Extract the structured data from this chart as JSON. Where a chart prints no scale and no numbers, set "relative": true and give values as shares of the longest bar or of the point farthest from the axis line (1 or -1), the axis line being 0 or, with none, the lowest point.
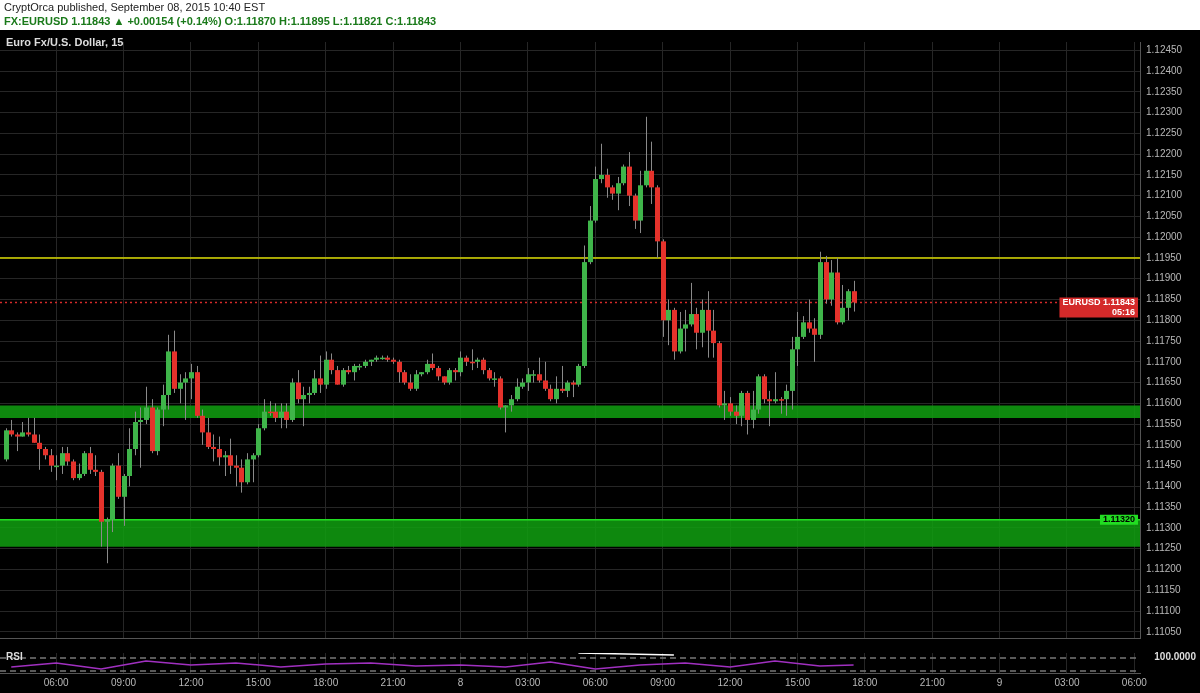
{
  "chart_data": [
    {
      "type": "candlestick",
      "title": "CryptOrca published, September 08, 2015 10:40 EST",
      "subtitle": "FX:EURUSD 1.11843 ▲ +0.00154 (+0.14%) O:1.11870 H:1.11895 L:1.11821 C:1.11843",
      "annotations": [
        "Euro Fx/U.S. Dollar, 15"
      ],
      "x": [
        "2015-09-07T03:45",
        "2015-09-07T04:00",
        "2015-09-07T04:15",
        "2015-09-07T04:30",
        "2015-09-07T04:45",
        "2015-09-07T05:00",
        "2015-09-07T05:15",
        "2015-09-07T05:30",
        "2015-09-07T05:45",
        "2015-09-07T06:00",
        "2015-09-07T06:15",
        "2015-09-07T06:30",
        "2015-09-07T06:45",
        "2015-09-07T07:00",
        "2015-09-07T07:15",
        "2015-09-07T07:30",
        "2015-09-07T07:45",
        "2015-09-07T08:00",
        "2015-09-07T08:15",
        "2015-09-07T08:30",
        "2015-09-07T08:45",
        "2015-09-07T09:00",
        "2015-09-07T09:15",
        "2015-09-07T09:30",
        "2015-09-07T09:45",
        "2015-09-07T10:00",
        "2015-09-07T10:15",
        "2015-09-07T10:30",
        "2015-09-07T10:45",
        "2015-09-07T11:00",
        "2015-09-07T11:15",
        "2015-09-07T11:30",
        "2015-09-07T11:45",
        "2015-09-07T12:00",
        "2015-09-07T12:15",
        "2015-09-07T12:30",
        "2015-09-07T12:45",
        "2015-09-07T13:00",
        "2015-09-07T13:15",
        "2015-09-07T13:30",
        "2015-09-07T13:45",
        "2015-09-07T14:00",
        "2015-09-07T14:15",
        "2015-09-07T14:30",
        "2015-09-07T14:45",
        "2015-09-07T15:00",
        "2015-09-07T15:15",
        "2015-09-07T15:30",
        "2015-09-07T15:45",
        "2015-09-07T16:00",
        "2015-09-07T16:15",
        "2015-09-07T16:30",
        "2015-09-07T16:45",
        "2015-09-07T17:00",
        "2015-09-07T17:15",
        "2015-09-07T17:30",
        "2015-09-07T17:45",
        "2015-09-07T18:00",
        "2015-09-07T18:15",
        "2015-09-07T18:30",
        "2015-09-07T18:45",
        "2015-09-07T19:00",
        "2015-09-07T19:15",
        "2015-09-07T19:30",
        "2015-09-07T19:45",
        "2015-09-07T20:00",
        "2015-09-07T20:15",
        "2015-09-07T20:30",
        "2015-09-07T20:45",
        "2015-09-07T21:00",
        "2015-09-07T21:15",
        "2015-09-07T21:30",
        "2015-09-07T21:45",
        "2015-09-07T22:00",
        "2015-09-07T22:15",
        "2015-09-07T22:30",
        "2015-09-07T22:45",
        "2015-09-07T23:00",
        "2015-09-07T23:15",
        "2015-09-07T23:30",
        "2015-09-07T23:45",
        "2015-09-08T00:00",
        "2015-09-08T00:15",
        "2015-09-08T00:30",
        "2015-09-08T00:45",
        "2015-09-08T01:00",
        "2015-09-08T01:15",
        "2015-09-08T01:30",
        "2015-09-08T01:45",
        "2015-09-08T02:00",
        "2015-09-08T02:15",
        "2015-09-08T02:30",
        "2015-09-08T02:45",
        "2015-09-08T03:00",
        "2015-09-08T03:15",
        "2015-09-08T03:30",
        "2015-09-08T03:45",
        "2015-09-08T04:00",
        "2015-09-08T04:15",
        "2015-09-08T04:30",
        "2015-09-08T04:45",
        "2015-09-08T05:00",
        "2015-09-08T05:15",
        "2015-09-08T05:30",
        "2015-09-08T05:45",
        "2015-09-08T06:00",
        "2015-09-08T06:15",
        "2015-09-08T06:30",
        "2015-09-08T06:45",
        "2015-09-08T07:00",
        "2015-09-08T07:15",
        "2015-09-08T07:30",
        "2015-09-08T07:45",
        "2015-09-08T08:00",
        "2015-09-08T08:15",
        "2015-09-08T08:30",
        "2015-09-08T08:45",
        "2015-09-08T09:00",
        "2015-09-08T09:15",
        "2015-09-08T09:30",
        "2015-09-08T09:45",
        "2015-09-08T10:00",
        "2015-09-08T10:15",
        "2015-09-08T10:30",
        "2015-09-08T10:45",
        "2015-09-08T11:00",
        "2015-09-08T11:15",
        "2015-09-08T11:30",
        "2015-09-08T11:45",
        "2015-09-08T12:00",
        "2015-09-08T12:15",
        "2015-09-08T12:30",
        "2015-09-08T12:45",
        "2015-09-08T13:00",
        "2015-09-08T13:15",
        "2015-09-08T13:30",
        "2015-09-08T13:45",
        "2015-09-08T14:00",
        "2015-09-08T14:15",
        "2015-09-08T14:30",
        "2015-09-08T14:45",
        "2015-09-08T15:00",
        "2015-09-08T15:15",
        "2015-09-08T15:30",
        "2015-09-08T15:45",
        "2015-09-08T16:00",
        "2015-09-08T16:15",
        "2015-09-08T16:30",
        "2015-09-08T16:45",
        "2015-09-08T17:00",
        "2015-09-08T17:15",
        "2015-09-08T17:30"
      ],
      "ohlc": [
        [
          1.11465,
          1.1154,
          1.1146,
          1.11535
        ],
        [
          1.11535,
          1.1156,
          1.1152,
          1.11525
        ],
        [
          1.11525,
          1.1153,
          1.11485,
          1.1152
        ],
        [
          1.1152,
          1.11555,
          1.1152,
          1.1153
        ],
        [
          1.1153,
          1.11565,
          1.1152,
          1.11525
        ],
        [
          1.11525,
          1.11565,
          1.11505,
          1.11505
        ],
        [
          1.11505,
          1.11525,
          1.1144,
          1.1149
        ],
        [
          1.1149,
          1.11495,
          1.11465,
          1.11475
        ],
        [
          1.11475,
          1.1149,
          1.11435,
          1.1145
        ],
        [
          1.1145,
          1.11475,
          1.11415,
          1.1145
        ],
        [
          1.1145,
          1.11495,
          1.1143,
          1.1148
        ],
        [
          1.1148,
          1.11495,
          1.1145,
          1.1146
        ],
        [
          1.1146,
          1.11465,
          1.11415,
          1.1142
        ],
        [
          1.1142,
          1.11455,
          1.11415,
          1.1143
        ],
        [
          1.1143,
          1.11485,
          1.11425,
          1.1148
        ],
        [
          1.1148,
          1.11495,
          1.1143,
          1.1144
        ],
        [
          1.1144,
          1.11475,
          1.11425,
          1.11435
        ],
        [
          1.11435,
          1.1144,
          1.11255,
          1.11315
        ],
        [
          1.11315,
          1.11325,
          1.11215,
          1.1132
        ],
        [
          1.1132,
          1.11455,
          1.1129,
          1.1145
        ],
        [
          1.1145,
          1.1148,
          1.1137,
          1.11375
        ],
        [
          1.11375,
          1.1143,
          1.11305,
          1.11425
        ],
        [
          1.11425,
          1.1154,
          1.114,
          1.1149
        ],
        [
          1.1149,
          1.1158,
          1.11475,
          1.11555
        ],
        [
          1.11555,
          1.1159,
          1.11445,
          1.1156
        ],
        [
          1.1156,
          1.1164,
          1.1155,
          1.1159
        ],
        [
          1.1159,
          1.1161,
          1.1148,
          1.11485
        ],
        [
          1.11485,
          1.1159,
          1.11475,
          1.11585
        ],
        [
          1.11585,
          1.11645,
          1.11545,
          1.1162
        ],
        [
          1.1162,
          1.11765,
          1.11585,
          1.11725
        ],
        [
          1.11725,
          1.11775,
          1.11625,
          1.11635
        ],
        [
          1.11635,
          1.1167,
          1.116,
          1.1165
        ],
        [
          1.1165,
          1.11675,
          1.1156,
          1.1166
        ],
        [
          1.1166,
          1.11695,
          1.1161,
          1.11675
        ],
        [
          1.11675,
          1.1169,
          1.11565,
          1.1157
        ],
        [
          1.1157,
          1.11585,
          1.115,
          1.1153
        ],
        [
          1.1153,
          1.11565,
          1.1149,
          1.11495
        ],
        [
          1.11495,
          1.11525,
          1.1146,
          1.1149
        ],
        [
          1.1149,
          1.1152,
          1.1145,
          1.1147
        ],
        [
          1.1147,
          1.11485,
          1.11425,
          1.11475
        ],
        [
          1.11475,
          1.11515,
          1.1143,
          1.1145
        ],
        [
          1.1145,
          1.11475,
          1.114,
          1.11445
        ],
        [
          1.11445,
          1.11465,
          1.11385,
          1.1141
        ],
        [
          1.1141,
          1.1148,
          1.11405,
          1.11465
        ],
        [
          1.11465,
          1.1148,
          1.1141,
          1.11475
        ],
        [
          1.11475,
          1.1155,
          1.1147,
          1.1154
        ],
        [
          1.1154,
          1.1161,
          1.11535,
          1.1158
        ],
        [
          1.1158,
          1.11605,
          1.1157,
          1.1158
        ],
        [
          1.1158,
          1.116,
          1.11555,
          1.11565
        ],
        [
          1.11565,
          1.116,
          1.1154,
          1.1158
        ],
        [
          1.1158,
          1.116,
          1.1154,
          1.1156
        ],
        [
          1.1156,
          1.1166,
          1.11555,
          1.1165
        ],
        [
          1.1165,
          1.1168,
          1.116,
          1.1161
        ],
        [
          1.1161,
          1.1164,
          1.11545,
          1.1162
        ],
        [
          1.1162,
          1.1164,
          1.116,
          1.11625
        ],
        [
          1.11625,
          1.1168,
          1.1162,
          1.1166
        ],
        [
          1.1166,
          1.11715,
          1.11625,
          1.11645
        ],
        [
          1.11645,
          1.11725,
          1.11635,
          1.11705
        ],
        [
          1.11705,
          1.1172,
          1.1167,
          1.1168
        ],
        [
          1.1168,
          1.1169,
          1.11645,
          1.11645
        ],
        [
          1.11645,
          1.11685,
          1.1164,
          1.1168
        ],
        [
          1.1168,
          1.1169,
          1.1167,
          1.11675
        ],
        [
          1.11675,
          1.11695,
          1.11655,
          1.1169
        ],
        [
          1.1169,
          1.11695,
          1.1168,
          1.1169
        ],
        [
          1.1169,
          1.11705,
          1.11685,
          1.117
        ],
        [
          1.117,
          1.11705,
          1.1169,
          1.11705
        ],
        [
          1.11705,
          1.11715,
          1.117,
          1.1171
        ],
        [
          1.1171,
          1.11715,
          1.11705,
          1.1171
        ],
        [
          1.1171,
          1.11715,
          1.117,
          1.11705
        ],
        [
          1.11705,
          1.1171,
          1.11695,
          1.117
        ],
        [
          1.117,
          1.11705,
          1.1165,
          1.11675
        ],
        [
          1.11675,
          1.1168,
          1.11645,
          1.1165
        ],
        [
          1.1165,
          1.1167,
          1.1163,
          1.11635
        ],
        [
          1.11635,
          1.1168,
          1.1163,
          1.1167
        ],
        [
          1.1167,
          1.11675,
          1.11665,
          1.11675
        ],
        [
          1.11675,
          1.11705,
          1.1167,
          1.11695
        ],
        [
          1.11695,
          1.1172,
          1.1168,
          1.11685
        ],
        [
          1.11685,
          1.1169,
          1.11655,
          1.11665
        ],
        [
          1.11665,
          1.11665,
          1.11645,
          1.1165
        ],
        [
          1.1165,
          1.11685,
          1.11645,
          1.1168
        ],
        [
          1.1168,
          1.11685,
          1.11655,
          1.11675
        ],
        [
          1.11675,
          1.11725,
          1.11665,
          1.1171
        ],
        [
          1.1171,
          1.11715,
          1.1169,
          1.117
        ],
        [
          1.117,
          1.1173,
          1.1168,
          1.117
        ],
        [
          1.117,
          1.1171,
          1.11685,
          1.11705
        ],
        [
          1.11705,
          1.1171,
          1.1167,
          1.1168
        ],
        [
          1.1168,
          1.11685,
          1.11655,
          1.1166
        ],
        [
          1.1166,
          1.11675,
          1.1164,
          1.1166
        ],
        [
          1.1166,
          1.11665,
          1.11585,
          1.1159
        ],
        [
          1.1159,
          1.11595,
          1.1153,
          1.11595
        ],
        [
          1.11595,
          1.1162,
          1.1158,
          1.1161
        ],
        [
          1.1161,
          1.1166,
          1.11605,
          1.1164
        ],
        [
          1.1164,
          1.1166,
          1.11635,
          1.1165
        ],
        [
          1.1165,
          1.11685,
          1.1163,
          1.1167
        ],
        [
          1.1167,
          1.1168,
          1.1165,
          1.1167
        ],
        [
          1.1167,
          1.1171,
          1.1165,
          1.11655
        ],
        [
          1.11655,
          1.117,
          1.1163,
          1.11635
        ],
        [
          1.11635,
          1.11645,
          1.11605,
          1.1161
        ],
        [
          1.1161,
          1.11665,
          1.116,
          1.11635
        ],
        [
          1.11635,
          1.1169,
          1.11625,
          1.1163
        ],
        [
          1.1163,
          1.11655,
          1.11615,
          1.1165
        ],
        [
          1.1165,
          1.11655,
          1.11615,
          1.11645
        ],
        [
          1.11645,
          1.11695,
          1.1164,
          1.1169
        ],
        [
          1.1169,
          1.1198,
          1.11685,
          1.1194
        ],
        [
          1.1194,
          1.12075,
          1.11935,
          1.1204
        ],
        [
          1.1204,
          1.1217,
          1.12035,
          1.1214
        ],
        [
          1.1214,
          1.12225,
          1.1213,
          1.1215
        ],
        [
          1.1215,
          1.12165,
          1.12095,
          1.1212
        ],
        [
          1.1212,
          1.12125,
          1.1209,
          1.12105
        ],
        [
          1.12105,
          1.12145,
          1.12065,
          1.1213
        ],
        [
          1.1213,
          1.12175,
          1.12125,
          1.1217
        ],
        [
          1.1217,
          1.12205,
          1.12075,
          1.121
        ],
        [
          1.121,
          1.12105,
          1.1202,
          1.1204
        ],
        [
          1.1204,
          1.1216,
          1.1201,
          1.12125
        ],
        [
          1.12125,
          1.1229,
          1.1212,
          1.1216
        ],
        [
          1.1216,
          1.1223,
          1.1208,
          1.1212
        ],
        [
          1.1212,
          1.12125,
          1.1195,
          1.1199
        ],
        [
          1.1199,
          1.11995,
          1.1176,
          1.118
        ],
        [
          1.118,
          1.1185,
          1.1174,
          1.11825
        ],
        [
          1.11825,
          1.1183,
          1.11705,
          1.11725
        ],
        [
          1.11725,
          1.1182,
          1.1172,
          1.1178
        ],
        [
          1.1178,
          1.11825,
          1.11725,
          1.1179
        ],
        [
          1.1179,
          1.1189,
          1.11785,
          1.11815
        ],
        [
          1.11815,
          1.1183,
          1.1173,
          1.1177
        ],
        [
          1.1177,
          1.1185,
          1.11735,
          1.11825
        ],
        [
          1.11825,
          1.1187,
          1.1171,
          1.11775
        ],
        [
          1.11775,
          1.11825,
          1.1171,
          1.11745
        ],
        [
          1.11745,
          1.1175,
          1.1159,
          1.11595
        ],
        [
          1.11595,
          1.1163,
          1.1156,
          1.116
        ],
        [
          1.116,
          1.11615,
          1.1157,
          1.1158
        ],
        [
          1.1158,
          1.11595,
          1.1155,
          1.1157
        ],
        [
          1.1157,
          1.1163,
          1.11545,
          1.11625
        ],
        [
          1.11625,
          1.1163,
          1.11525,
          1.1156
        ],
        [
          1.1156,
          1.1163,
          1.1154,
          1.11585
        ],
        [
          1.11585,
          1.1167,
          1.11575,
          1.11665
        ],
        [
          1.11665,
          1.1167,
          1.116,
          1.1161
        ],
        [
          1.1161,
          1.1163,
          1.11545,
          1.11605
        ],
        [
          1.11605,
          1.11675,
          1.116,
          1.1161
        ],
        [
          1.1161,
          1.11615,
          1.11575,
          1.1161
        ],
        [
          1.1161,
          1.11645,
          1.1157,
          1.1163
        ],
        [
          1.1163,
          1.1176,
          1.11585,
          1.1173
        ],
        [
          1.1173,
          1.1182,
          1.1169,
          1.1176
        ],
        [
          1.1176,
          1.1181,
          1.11755,
          1.11795
        ],
        [
          1.11795,
          1.1185,
          1.1177,
          1.1178
        ],
        [
          1.1178,
          1.11805,
          1.117,
          1.11765
        ],
        [
          1.11765,
          1.11965,
          1.11755,
          1.1194
        ],
        [
          1.1194,
          1.11955,
          1.1184,
          1.1185
        ],
        [
          1.1185,
          1.11945,
          1.11835,
          1.11915
        ],
        [
          1.11915,
          1.1195,
          1.1179,
          1.11795
        ],
        [
          1.11795,
          1.11885,
          1.1179,
          1.1183
        ],
        [
          1.1183,
          1.11875,
          1.118,
          1.1187
        ],
        [
          1.1187,
          1.11895,
          1.11821,
          1.11843
        ]
      ],
      "colors": [
        "#3fb54a",
        "#e5322b",
        "#e5322b",
        "#3fb54a",
        "#e5322b",
        "#e5322b",
        "#e5322b",
        "#e5322b",
        "#e5322b",
        "#3fb54a",
        "#3fb54a",
        "#e5322b",
        "#e5322b",
        "#3fb54a",
        "#3fb54a",
        "#e5322b",
        "#e5322b",
        "#e5322b",
        "#3fb54a",
        "#3fb54a",
        "#e5322b",
        "#3fb54a",
        "#3fb54a",
        "#3fb54a",
        "#3fb54a",
        "#3fb54a",
        "#e5322b",
        "#3fb54a",
        "#3fb54a",
        "#3fb54a",
        "#e5322b",
        "#3fb54a",
        "#3fb54a",
        "#3fb54a",
        "#e5322b",
        "#e5322b",
        "#e5322b",
        "#e5322b",
        "#e5322b",
        "#3fb54a",
        "#e5322b",
        "#e5322b",
        "#e5322b",
        "#3fb54a",
        "#3fb54a",
        "#3fb54a",
        "#3fb54a",
        "#e5322b",
        "#e5322b",
        "#3fb54a",
        "#e5322b",
        "#3fb54a",
        "#e5322b",
        "#3fb54a",
        "#3fb54a",
        "#3fb54a",
        "#e5322b",
        "#3fb54a",
        "#e5322b",
        "#e5322b",
        "#3fb54a",
        "#e5322b",
        "#3fb54a",
        "#3fb54a",
        "#3fb54a",
        "#3fb54a",
        "#3fb54a",
        "#3fb54a",
        "#e5322b",
        "#e5322b",
        "#e5322b",
        "#e5322b",
        "#e5322b",
        "#3fb54a",
        "#3fb54a",
        "#3fb54a",
        "#e5322b",
        "#e5322b",
        "#e5322b",
        "#3fb54a",
        "#e5322b",
        "#3fb54a",
        "#e5322b",
        "#e5322b",
        "#3fb54a",
        "#e5322b",
        "#e5322b",
        "#3fb54a",
        "#e5322b",
        "#3fb54a",
        "#3fb54a",
        "#3fb54a",
        "#3fb54a",
        "#3fb54a",
        "#3fb54a",
        "#e5322b",
        "#e5322b",
        "#e5322b",
        "#3fb54a",
        "#e5322b",
        "#3fb54a",
        "#e5322b",
        "#3fb54a",
        "#3fb54a",
        "#3fb54a",
        "#3fb54a",
        "#3fb54a",
        "#e5322b",
        "#e5322b",
        "#3fb54a",
        "#3fb54a",
        "#e5322b",
        "#e5322b",
        "#3fb54a",
        "#3fb54a",
        "#e5322b",
        "#e5322b",
        "#e5322b",
        "#3fb54a",
        "#e5322b",
        "#3fb54a",
        "#3fb54a",
        "#3fb54a",
        "#e5322b",
        "#3fb54a",
        "#e5322b",
        "#e5322b",
        "#e5322b",
        "#3fb54a",
        "#e5322b",
        "#e5322b",
        "#3fb54a",
        "#e5322b",
        "#3fb54a",
        "#3fb54a",
        "#e5322b",
        "#e5322b",
        "#3fb54a",
        "#e5322b",
        "#3fb54a",
        "#3fb54a",
        "#3fb54a",
        "#3fb54a",
        "#e5322b",
        "#e5322b",
        "#3fb54a",
        "#e5322b",
        "#3fb54a",
        "#e5322b",
        "#3fb54a",
        "#3fb54a",
        "#e5322b"
      ],
      "xlim": [
        "2015-09-07T03:30",
        "2015-09-09T06:15"
      ],
      "xticks": [
        {
          "value": "2015-09-07T06:00",
          "label": null
        },
        {
          "value": "2015-09-07T09:00",
          "label": null
        },
        {
          "value": "2015-09-07T12:00",
          "label": null
        },
        {
          "value": "2015-09-07T15:00",
          "label": null
        },
        {
          "value": "2015-09-07T18:00",
          "label": null
        },
        {
          "value": "2015-09-07T21:00",
          "label": null
        },
        {
          "value": "2015-09-08T00:00",
          "label": null
        },
        {
          "value": "2015-09-08T03:00",
          "label": null
        },
        {
          "value": "2015-09-08T06:00",
          "label": null
        },
        {
          "value": "2015-09-08T09:00",
          "label": null
        },
        {
          "value": "2015-09-08T12:00",
          "label": null
        },
        {
          "value": "2015-09-08T15:00",
          "label": null
        },
        {
          "value": "2015-09-08T18:00",
          "label": null
        },
        {
          "value": "2015-09-08T21:00",
          "label": null
        },
        {
          "value": "2015-09-09T00:00",
          "label": null
        },
        {
          "value": "2015-09-09T03:00",
          "label": null
        },
        {
          "value": "2015-09-09T06:00",
          "label": null
        }
      ],
      "ylim": [
        1.11035,
        1.1247
      ],
      "yticks": [
        {
          "value": 1.1105,
          "label": "1.11050"
        },
        {
          "value": 1.111,
          "label": "1.11100"
        },
        {
          "value": 1.1115,
          "label": "1.11150"
        },
        {
          "value": 1.112,
          "label": "1.11200"
        },
        {
          "value": 1.1125,
          "label": "1.11250"
        },
        {
          "value": 1.113,
          "label": "1.11300"
        },
        {
          "value": 1.1135,
          "label": "1.11350"
        },
        {
          "value": 1.114,
          "label": "1.11400"
        },
        {
          "value": 1.1145,
          "label": "1.11450"
        },
        {
          "value": 1.115,
          "label": "1.11500"
        },
        {
          "value": 1.1155,
          "label": "1.11550"
        },
        {
          "value": 1.116,
          "label": "1.11600"
        },
        {
          "value": 1.1165,
          "label": "1.11650"
        },
        {
          "value": 1.117,
          "label": "1.11700"
        },
        {
          "value": 1.1175,
          "label": "1.11750"
        },
        {
          "value": 1.118,
          "label": "1.11800"
        },
        {
          "value": 1.1185,
          "label": "1.11850"
        },
        {
          "value": 1.119,
          "label": "1.11900"
        },
        {
          "value": 1.1195,
          "label": "1.11950"
        },
        {
          "value": 1.12,
          "label": "1.12000"
        },
        {
          "value": 1.1205,
          "label": "1.12050"
        },
        {
          "value": 1.121,
          "label": "1.12100"
        },
        {
          "value": 1.1215,
          "label": "1.12150"
        },
        {
          "value": 1.122,
          "label": "1.12200"
        },
        {
          "value": 1.1225,
          "label": "1.12250"
        },
        {
          "value": 1.123,
          "label": "1.12300"
        },
        {
          "value": 1.1235,
          "label": "1.12350"
        },
        {
          "value": 1.124,
          "label": "1.12400"
        },
        {
          "value": 1.1245,
          "label": "1.12450"
        }
      ],
      "bands": [
        {
          "axis": "y",
          "from": 1.11255,
          "to": 1.1132,
          "color": "#11a011"
        },
        {
          "axis": "y",
          "from": 1.11565,
          "to": 1.11595,
          "color": "#11a011"
        }
      ],
      "ref_lines": [
        {
          "axis": "y",
          "value": 1.11843,
          "label": "EURUSD 1.11843 05:16",
          "color": "#d42a2a",
          "line_style": "dotted"
        },
        {
          "axis": "y",
          "value": 1.1132,
          "label": "1.11320",
          "color": "#22dd22",
          "line_style": "solid"
        },
        {
          "axis": "y",
          "value": 1.1195,
          "color": "#d8d800",
          "line_style": "solid"
        }
      ],
      "grid": true,
      "tick_labels": "y"
    },
    {
      "type": "line",
      "title": "RSI",
      "relative": true,
      "annotations": [
        "100.0000"
      ],
      "series": [
        {
          "color": "#a030c0",
          "x": [
            "2015-09-07T04:00",
            "2015-09-07T06:00",
            "2015-09-07T08:00",
            "2015-09-07T10:00",
            "2015-09-07T12:00",
            "2015-09-07T14:00",
            "2015-09-07T16:00",
            "2015-09-07T18:00",
            "2015-09-07T20:00",
            "2015-09-07T22:00",
            "2015-09-08T00:00",
            "2015-09-08T02:00",
            "2015-09-08T04:00",
            "2015-09-08T06:00",
            "2015-09-08T08:00",
            "2015-09-08T10:00",
            "2015-09-08T12:00",
            "2015-09-08T14:00",
            "2015-09-08T16:00",
            "2015-09-08T17:30"
          ],
          "values": [
            0.3,
            0.5,
            0.2,
            0.6,
            0.4,
            0.5,
            0.3,
            0.45,
            0.5,
            0.35,
            0.4,
            0.3,
            0.55,
            0.2,
            0.4,
            0.5,
            0.3,
            0.6,
            0.35,
            0.4
          ]
        },
        {
          "type": "line",
          "color": "#ffffff",
          "x": [
            "2015-09-08T05:15",
            "2015-09-08T09:30"
          ],
          "values": [
            1,
            0.9
          ]
        }
      ],
      "xlim": [
        "2015-09-07T03:30",
        "2015-09-09T06:15"
      ],
      "xticks": [
        {
          "value": "2015-09-07T06:00",
          "label": "06:00"
        },
        {
          "value": "2015-09-07T09:00",
          "label": "09:00"
        },
        {
          "value": "2015-09-07T12:00",
          "label": "12:00"
        },
        {
          "value": "2015-09-07T15:00",
          "label": "15:00"
        },
        {
          "value": "2015-09-07T18:00",
          "label": "18:00"
        },
        {
          "value": "2015-09-07T21:00",
          "label": "21:00"
        },
        {
          "value": "2015-09-08T00:00",
          "label": "8"
        },
        {
          "value": "2015-09-08T03:00",
          "label": "03:00"
        },
        {
          "value": "2015-09-08T06:00",
          "label": "06:00"
        },
        {
          "value": "2015-09-08T09:00",
          "label": "09:00"
        },
        {
          "value": "2015-09-08T12:00",
          "label": "12:00"
        },
        {
          "value": "2015-09-08T15:00",
          "label": "15:00"
        },
        {
          "value": "2015-09-08T18:00",
          "label": "18:00"
        },
        {
          "value": "2015-09-08T21:00",
          "label": "21:00"
        },
        {
          "value": "2015-09-09T00:00",
          "label": "9"
        },
        {
          "value": "2015-09-09T03:00",
          "label": "03:00"
        },
        {
          "value": "2015-09-09T06:00",
          "label": "06:00"
        }
      ],
      "ref_lines": [
        {
          "axis": "y",
          "value": 0.75,
          "color": "#777777",
          "line_style": "dashed"
        },
        {
          "axis": "y",
          "value": 0.1,
          "color": "#777777",
          "line_style": "dashed"
        }
      ],
      "grid": "x"
    }
  ]
}
